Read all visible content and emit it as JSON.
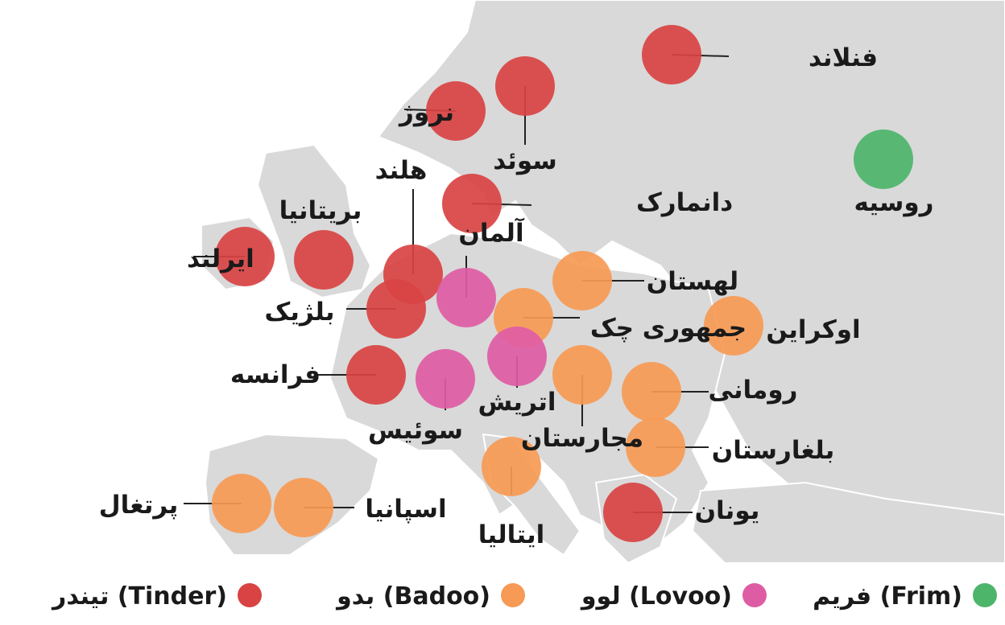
{
  "colors": {
    "sea": "#ffffff",
    "land": "#d9d9d9",
    "land_other": "#e6e6e6",
    "border": "#ffffff",
    "leader": "#222222"
  },
  "apps": {
    "tinder": {
      "label": "تیندر (Tinder)",
      "color": "#d94343"
    },
    "badoo": {
      "label": "بدو (Badoo)",
      "color": "#f79a55"
    },
    "lovoo": {
      "label": "لوو (Lovoo)",
      "color": "#de5ca4"
    },
    "frim": {
      "label": "فریم (Frim)",
      "color": "#4db56a"
    }
  },
  "legend_order": [
    "tinder",
    "badoo",
    "lovoo",
    "frim"
  ],
  "countries": [
    {
      "id": "finland",
      "name": "فنلاند",
      "app": "tinder"
    },
    {
      "id": "norway",
      "name": "نروژ",
      "app": "tinder"
    },
    {
      "id": "sweden",
      "name": "سوئد",
      "app": "tinder"
    },
    {
      "id": "russia",
      "name": "روسیه",
      "app": "frim"
    },
    {
      "id": "denmark",
      "name": "دانمارک",
      "app": "tinder"
    },
    {
      "id": "netherlands",
      "name": "هلند",
      "app": "tinder"
    },
    {
      "id": "uk",
      "name": "بریتانیا",
      "app": "tinder"
    },
    {
      "id": "germany",
      "name": "آلمان",
      "app": "lovoo"
    },
    {
      "id": "ireland",
      "name": "ایرلند",
      "app": "tinder"
    },
    {
      "id": "poland",
      "name": "لهستان",
      "app": "badoo"
    },
    {
      "id": "belgium",
      "name": "بلژیک",
      "app": "tinder"
    },
    {
      "id": "czech",
      "name": "جمهوری چک",
      "app": "badoo"
    },
    {
      "id": "ukraine",
      "name": "اوکراین",
      "app": "badoo"
    },
    {
      "id": "france",
      "name": "فرانسه",
      "app": "tinder"
    },
    {
      "id": "romania",
      "name": "رومانی",
      "app": "badoo"
    },
    {
      "id": "austria",
      "name": "اتریش",
      "app": "lovoo"
    },
    {
      "id": "switzerland",
      "name": "سوئیس",
      "app": "lovoo"
    },
    {
      "id": "hungary",
      "name": "مجارستان",
      "app": "badoo"
    },
    {
      "id": "bulgaria",
      "name": "بلغارستان",
      "app": "badoo"
    },
    {
      "id": "portugal",
      "name": "پرتغال",
      "app": "badoo"
    },
    {
      "id": "spain",
      "name": "اسپانیا",
      "app": "badoo"
    },
    {
      "id": "italy",
      "name": "ایتالیا",
      "app": "badoo"
    },
    {
      "id": "greece",
      "name": "یونان",
      "app": "tinder"
    }
  ]
}
